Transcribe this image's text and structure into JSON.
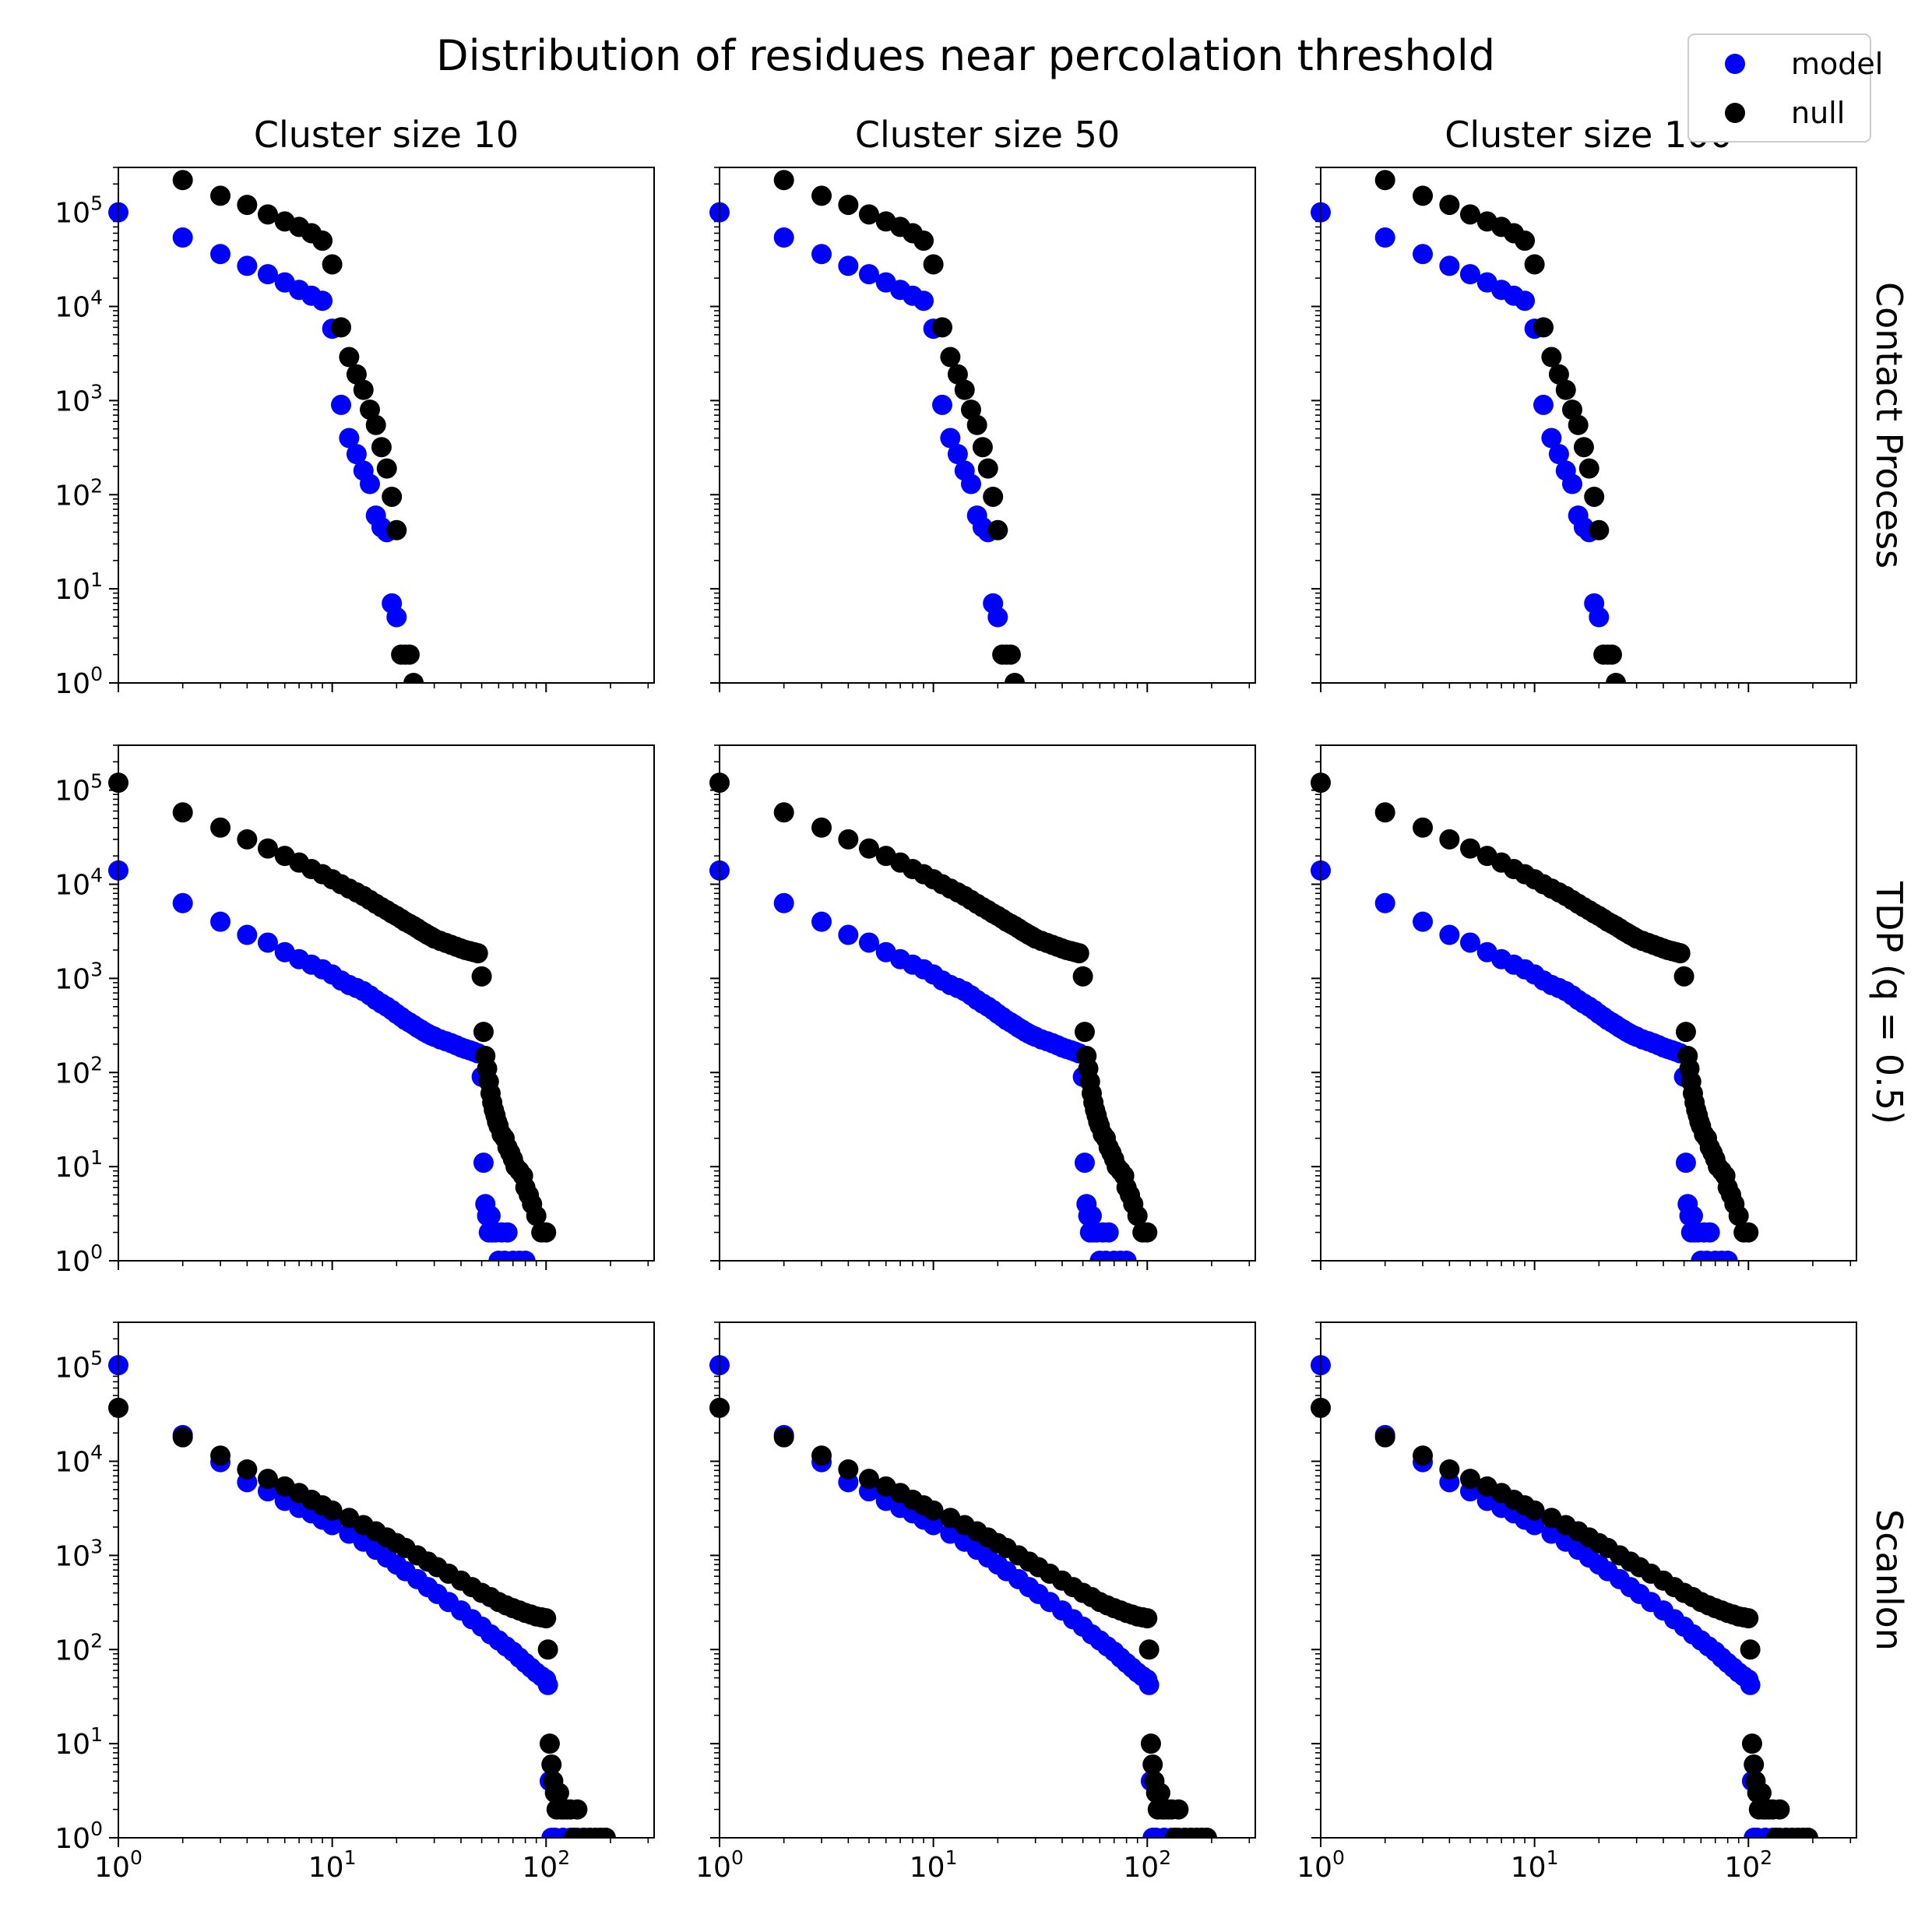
{
  "chart_data": {
    "type": "scatter",
    "title": "Distribution of residues near percolation threshold",
    "x_scale": "log",
    "y_scale": "log",
    "xlim": [
      1,
      320
    ],
    "ylim": [
      1,
      300000
    ],
    "x_ticks": [
      {
        "value": 1,
        "base": "10",
        "exp": "0"
      },
      {
        "value": 10,
        "base": "10",
        "exp": "1"
      },
      {
        "value": 100,
        "base": "10",
        "exp": "2"
      }
    ],
    "y_ticks": [
      {
        "value": 1,
        "base": "10",
        "exp": "0"
      },
      {
        "value": 10,
        "base": "10",
        "exp": "1"
      },
      {
        "value": 100,
        "base": "10",
        "exp": "2"
      },
      {
        "value": 1000,
        "base": "10",
        "exp": "3"
      },
      {
        "value": 10000,
        "base": "10",
        "exp": "4"
      },
      {
        "value": 100000,
        "base": "10",
        "exp": "5"
      }
    ],
    "grid": false,
    "legend": {
      "position": "top-right",
      "entries": [
        {
          "name": "model",
          "color": "#0000ff"
        },
        {
          "name": "null",
          "color": "#000000"
        }
      ]
    },
    "column_titles": [
      "Cluster size 10",
      "Cluster size 50",
      "Cluster size 100"
    ],
    "row_titles": [
      "Contact Process",
      "TDP (q = 0.5)",
      "Scanlon"
    ],
    "rows": [
      {
        "name": "Contact Process",
        "series": [
          {
            "name": "model",
            "color": "#0000ff",
            "x": [
              1,
              2,
              3,
              4,
              5,
              6,
              7,
              8,
              9,
              10,
              11,
              12,
              13,
              14,
              15,
              16,
              17,
              18,
              19,
              20
            ],
            "y": [
              100000,
              54000,
              36000,
              27000,
              22000,
              18000,
              15000,
              13000,
              11500,
              5800,
              900,
              400,
              270,
              180,
              130,
              60,
              45,
              40,
              7,
              5
            ]
          },
          {
            "name": "null",
            "color": "#000000",
            "x": [
              2,
              3,
              4,
              5,
              6,
              7,
              8,
              9,
              10,
              11,
              12,
              13,
              14,
              15,
              16,
              17,
              18,
              19,
              20,
              21,
              22,
              23,
              24
            ],
            "y": [
              220000,
              150000,
              120000,
              95000,
              80000,
              70000,
              60000,
              50000,
              28000,
              6000,
              2900,
              1900,
              1300,
              800,
              550,
              320,
              190,
              95,
              42,
              2,
              2,
              2,
              1
            ]
          }
        ]
      },
      {
        "name": "TDP (q = 0.5)",
        "series": [
          {
            "name": "model",
            "color": "#0000ff",
            "x": [
              1,
              2,
              3,
              4,
              5,
              6,
              7,
              8,
              9,
              10,
              11,
              12,
              13,
              14,
              15,
              16,
              17,
              18,
              19,
              20,
              21,
              22,
              23,
              24,
              25,
              26,
              27,
              28,
              29,
              30,
              32,
              34,
              36,
              38,
              40,
              42,
              44,
              46,
              48,
              50,
              51,
              52,
              53,
              54,
              55,
              56,
              58,
              60,
              62,
              64,
              66,
              70,
              75,
              80
            ],
            "y": [
              14000,
              6300,
              4000,
              2900,
              2400,
              1900,
              1600,
              1400,
              1250,
              1100,
              950,
              850,
              790,
              730,
              660,
              590,
              540,
              500,
              460,
              420,
              390,
              360,
              340,
              320,
              300,
              285,
              270,
              258,
              248,
              240,
              225,
              215,
              205,
              195,
              185,
              178,
              172,
              166,
              160,
              90,
              11,
              4,
              3,
              2,
              3,
              2,
              2,
              1,
              2,
              1,
              2,
              1,
              1,
              1
            ]
          },
          {
            "name": "null",
            "color": "#000000",
            "x": [
              1,
              2,
              3,
              4,
              5,
              6,
              7,
              8,
              9,
              10,
              11,
              12,
              13,
              14,
              15,
              16,
              17,
              18,
              19,
              20,
              21,
              22,
              23,
              24,
              25,
              26,
              27,
              28,
              29,
              30,
              32,
              34,
              36,
              38,
              40,
              42,
              44,
              46,
              48,
              50,
              51,
              52,
              53,
              54,
              55,
              56,
              57,
              58,
              59,
              60,
              62,
              64,
              66,
              68,
              70,
              72,
              75,
              78,
              80,
              83,
              86,
              90,
              95,
              100
            ],
            "y": [
              120000,
              58000,
              40000,
              30000,
              24000,
              20000,
              17000,
              14500,
              12800,
              11300,
              10000,
              9000,
              8200,
              7500,
              6800,
              6200,
              5700,
              5300,
              4900,
              4600,
              4300,
              4000,
              3800,
              3600,
              3400,
              3200,
              3050,
              2900,
              2780,
              2650,
              2500,
              2380,
              2270,
              2170,
              2080,
              2000,
              1950,
              1900,
              1850,
              1050,
              270,
              150,
              110,
              80,
              60,
              48,
              40,
              35,
              30,
              27,
              22,
              20,
              16,
              14,
              12,
              10,
              9,
              8,
              6,
              5,
              4,
              3,
              2,
              2
            ]
          }
        ]
      },
      {
        "name": "Scanlon",
        "series": [
          {
            "name": "model",
            "color": "#0000ff",
            "x": [
              1,
              2,
              3,
              4,
              5,
              6,
              7,
              8,
              9,
              10,
              12,
              14,
              16,
              18,
              20,
              22,
              25,
              28,
              31,
              35,
              40,
              45,
              50,
              55,
              60,
              65,
              70,
              75,
              80,
              85,
              90,
              95,
              100,
              102,
              104,
              106,
              110,
              120,
              130,
              140,
              150,
              160,
              170,
              180,
              190
            ],
            "y": [
              105000,
              19000,
              9800,
              6000,
              4800,
              3800,
              3200,
              2800,
              2400,
              2100,
              1700,
              1400,
              1150,
              950,
              800,
              680,
              560,
              460,
              390,
              320,
              260,
              210,
              175,
              145,
              125,
              108,
              95,
              82,
              72,
              64,
              57,
              52,
              48,
              42,
              4,
              1,
              1,
              1,
              1,
              1,
              1,
              1,
              1,
              1,
              1
            ]
          },
          {
            "name": "null",
            "color": "#000000",
            "x": [
              1,
              2,
              3,
              4,
              5,
              6,
              7,
              8,
              9,
              10,
              12,
              14,
              16,
              18,
              20,
              22,
              25,
              28,
              31,
              35,
              40,
              45,
              50,
              55,
              60,
              65,
              70,
              75,
              80,
              85,
              90,
              95,
              100,
              102,
              104,
              106,
              108,
              110,
              112,
              115,
              118,
              120,
              125,
              130,
              135,
              140,
              150,
              160,
              170,
              180,
              190
            ],
            "y": [
              37000,
              18000,
              11500,
              8200,
              6500,
              5400,
              4600,
              3900,
              3400,
              3000,
              2500,
              2100,
              1800,
              1550,
              1350,
              1200,
              1000,
              860,
              750,
              640,
              540,
              460,
              400,
              360,
              320,
              295,
              275,
              260,
              245,
              235,
              225,
              220,
              215,
              100,
              10,
              6,
              4,
              3,
              2,
              3,
              2,
              2,
              2,
              2,
              1,
              2,
              1,
              1,
              1,
              1,
              1
            ]
          }
        ]
      }
    ]
  }
}
